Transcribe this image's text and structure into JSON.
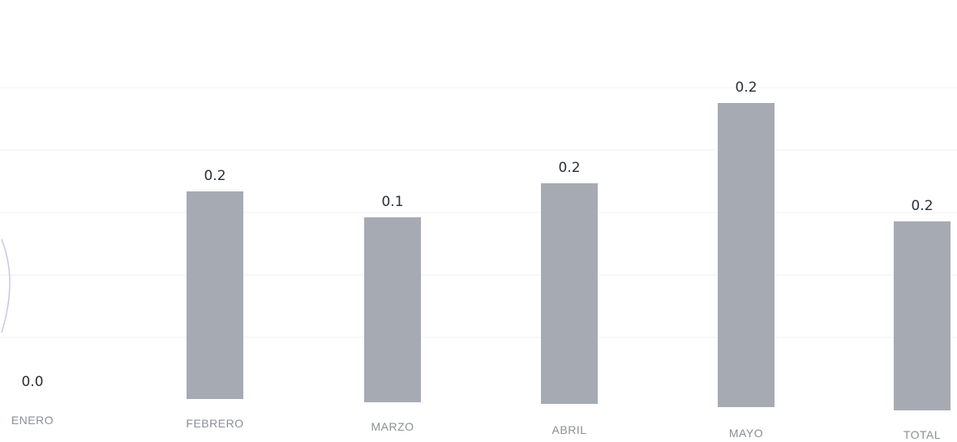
{
  "chart_data": {
    "type": "bar",
    "categories": [
      "ENERO",
      "FEBRERO",
      "MARZO",
      "ABRIL",
      "MAYO",
      "TOTAL"
    ],
    "values": [
      0.0,
      0.2,
      0.1,
      0.2,
      0.2,
      0.2
    ],
    "data_labels": [
      "0.0",
      "0.2",
      "0.1",
      "0.2",
      "0.2",
      "0.2"
    ],
    "title": "",
    "xlabel": "",
    "ylabel": "",
    "grid": true,
    "colors": {
      "bar": "#a6aab3",
      "data_label": "#2a2f3a",
      "tick_label": "#8a8f96"
    }
  }
}
